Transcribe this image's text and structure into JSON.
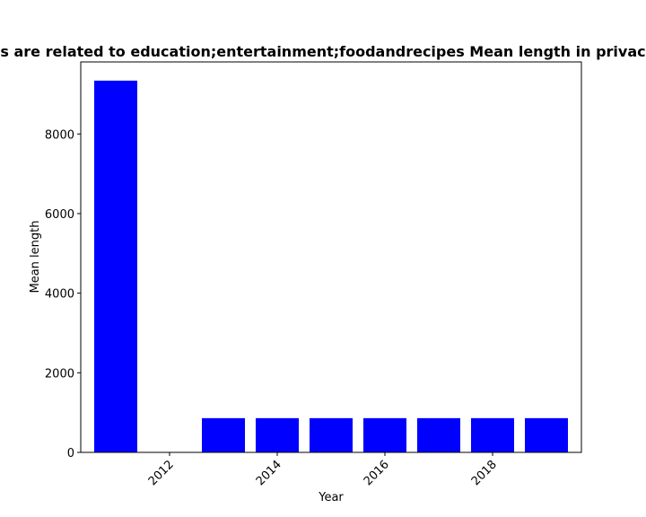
{
  "chart_data": {
    "type": "bar",
    "title": "s are related to education;entertainment;foodandrecipes Mean length in privac",
    "xlabel": "Year",
    "ylabel": "Mean length",
    "x": [
      2011,
      2013,
      2014,
      2015,
      2016,
      2017,
      2018,
      2019
    ],
    "values": [
      9340,
      860,
      860,
      860,
      860,
      860,
      860,
      860
    ],
    "xlim": [
      2010.35,
      2019.65
    ],
    "ylim": [
      0,
      9810
    ],
    "xticks": [
      2012,
      2014,
      2016,
      2018
    ],
    "xtick_labels": [
      "2012",
      "2014",
      "2016",
      "2018"
    ],
    "yticks": [
      0,
      2000,
      4000,
      6000,
      8000
    ],
    "ytick_labels": [
      "0",
      "2000",
      "4000",
      "6000",
      "8000"
    ],
    "bar_color": "#0000ff",
    "grid": false,
    "legend": "none"
  }
}
